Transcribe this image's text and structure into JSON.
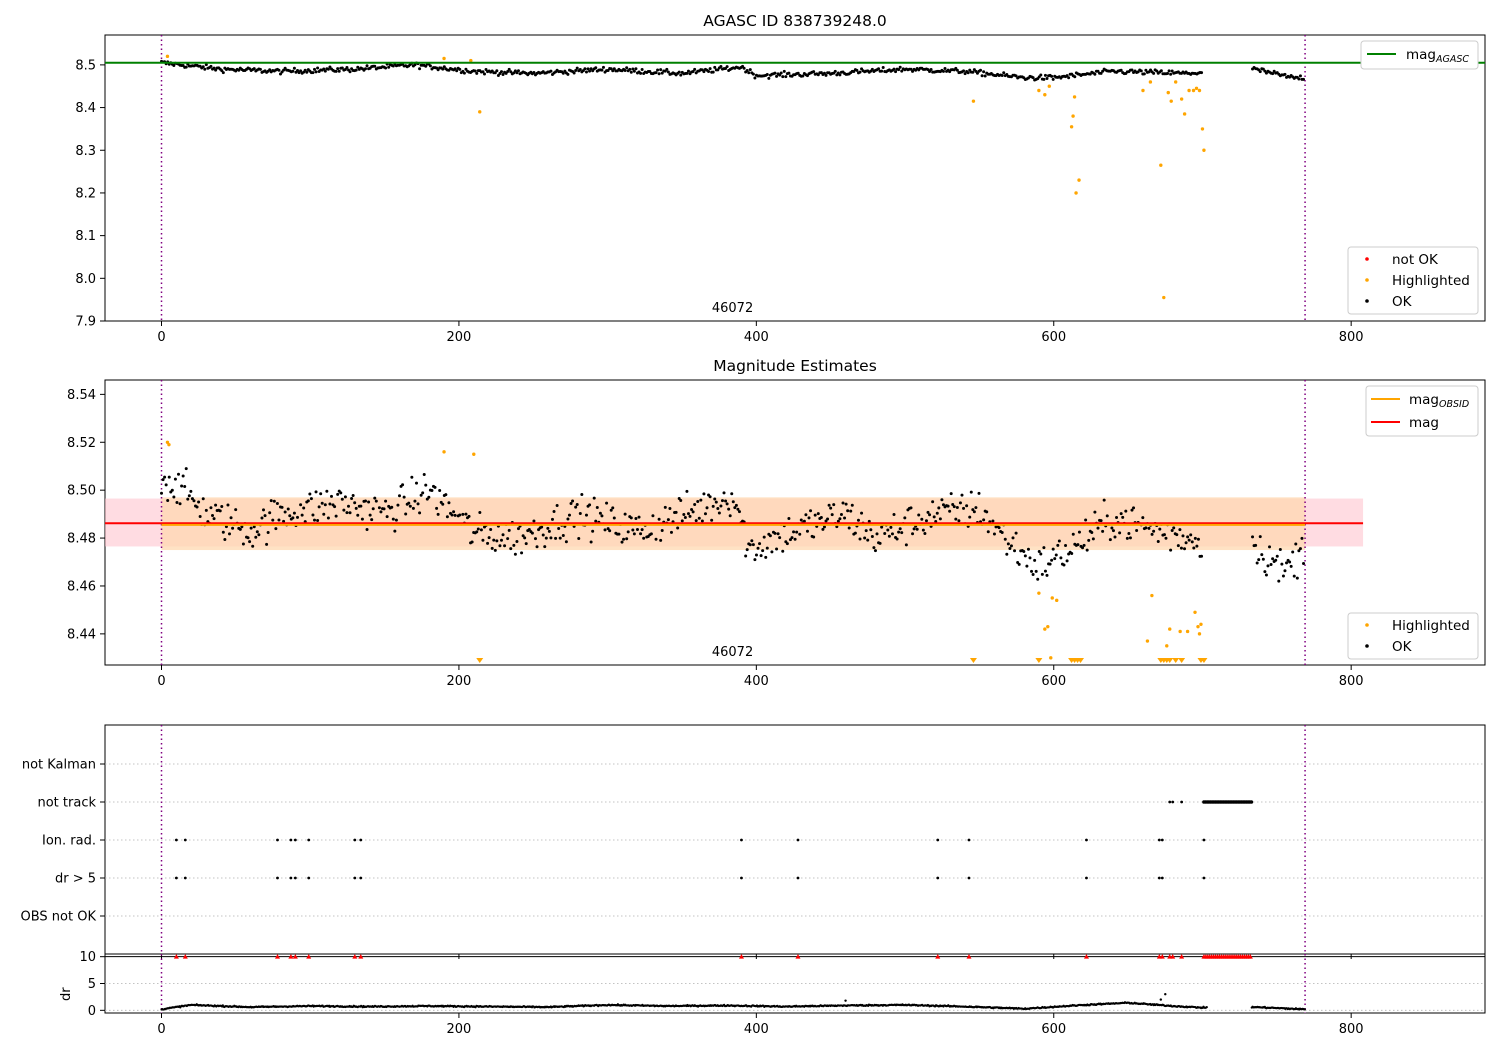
{
  "chart_data": [
    {
      "type": "scatter",
      "title": "AGASC ID 838739248.0",
      "xlabel": "",
      "ylabel": "",
      "xlim": [
        -38,
        890
      ],
      "ylim": [
        7.9,
        8.57
      ],
      "xticks": [
        0,
        200,
        400,
        600,
        800
      ],
      "yticks": [
        7.9,
        8.0,
        8.1,
        8.2,
        8.3,
        8.4,
        8.5
      ],
      "ytick_labels": [
        "7.9",
        "8.0",
        "8.1",
        "8.2",
        "8.3",
        "8.4",
        "8.5"
      ],
      "obsid_boundaries": [
        0,
        769
      ],
      "obsid_label": {
        "text": "46072",
        "x": 384
      },
      "mag_agasc": 8.505,
      "legend_lines": [
        {
          "label": "mag",
          "sub": "AGASC",
          "color": "#008000"
        }
      ],
      "legend_markers": [
        {
          "label": "not OK",
          "color": "#ff0000"
        },
        {
          "label": "Highlighted",
          "color": "#ffa500"
        },
        {
          "label": "OK",
          "color": "#000000"
        }
      ],
      "series": [
        {
          "name": "OK",
          "color": "#000000",
          "base_segments": [
            [
              0,
              8.505
            ],
            [
              40,
              8.49
            ],
            [
              80,
              8.485
            ],
            [
              130,
              8.49
            ],
            [
              170,
              8.5
            ],
            [
              210,
              8.485
            ],
            [
              250,
              8.48
            ],
            [
              300,
              8.49
            ],
            [
              350,
              8.48
            ],
            [
              390,
              8.495
            ],
            [
              400,
              8.475
            ],
            [
              450,
              8.48
            ],
            [
              500,
              8.49
            ],
            [
              540,
              8.485
            ],
            [
              580,
              8.47
            ],
            [
              600,
              8.47
            ],
            [
              640,
              8.485
            ],
            [
              690,
              8.48
            ],
            [
              735,
              8.49
            ],
            [
              760,
              8.47
            ]
          ],
          "gap": [
            700,
            733
          ],
          "count": 740
        },
        {
          "name": "Highlighted",
          "color": "#ffa500",
          "points": [
            [
              4,
              8.52
            ],
            [
              190,
              8.515
            ],
            [
              208,
              8.51
            ],
            [
              214,
              8.39
            ],
            [
              546,
              8.415
            ],
            [
              590,
              8.44
            ],
            [
              594,
              8.43
            ],
            [
              597,
              8.45
            ],
            [
              612,
              8.355
            ],
            [
              613,
              8.38
            ],
            [
              614,
              8.425
            ],
            [
              615,
              8.2
            ],
            [
              617,
              8.23
            ],
            [
              660,
              8.44
            ],
            [
              665,
              8.46
            ],
            [
              672,
              8.265
            ],
            [
              674,
              7.955
            ],
            [
              677,
              8.435
            ],
            [
              679,
              8.415
            ],
            [
              682,
              8.46
            ],
            [
              686,
              8.42
            ],
            [
              688,
              8.385
            ],
            [
              691,
              8.44
            ],
            [
              694,
              8.44
            ],
            [
              696,
              8.445
            ],
            [
              698,
              8.44
            ],
            [
              700,
              8.35
            ],
            [
              701,
              8.3
            ]
          ]
        },
        {
          "name": "not OK",
          "color": "#ff0000",
          "points": []
        }
      ]
    },
    {
      "type": "scatter",
      "title": "Magnitude Estimates",
      "xlabel": "",
      "ylabel": "",
      "xlim": [
        -38,
        890
      ],
      "ylim": [
        8.427,
        8.546
      ],
      "xticks": [
        0,
        200,
        400,
        600,
        800
      ],
      "yticks": [
        8.44,
        8.46,
        8.48,
        8.5,
        8.52,
        8.54
      ],
      "ytick_labels": [
        "8.44",
        "8.46",
        "8.48",
        "8.50",
        "8.52",
        "8.54"
      ],
      "obsid_boundaries": [
        0,
        769
      ],
      "obsid_label": {
        "text": "46072",
        "x": 384
      },
      "mag_mean": 8.4862,
      "mag_band": [
        8.4765,
        8.4965
      ],
      "mag_obsid": 8.4855,
      "mag_obsid_band": [
        8.475,
        8.497
      ],
      "legend_lines": [
        {
          "label": "mag",
          "sub": "OBSID",
          "color": "#ffa500"
        },
        {
          "label": "mag",
          "sub": "",
          "color": "#ff0000"
        }
      ],
      "legend_markers": [
        {
          "label": "Highlighted",
          "color": "#ffa500"
        },
        {
          "label": "OK",
          "color": "#000000"
        }
      ],
      "series": [
        {
          "name": "OK",
          "color": "#000000",
          "base_segments": [
            [
              0,
              8.505
            ],
            [
              15,
              8.5
            ],
            [
              30,
              8.49
            ],
            [
              60,
              8.483
            ],
            [
              80,
              8.49
            ],
            [
              120,
              8.495
            ],
            [
              150,
              8.49
            ],
            [
              180,
              8.5
            ],
            [
              210,
              8.482
            ],
            [
              240,
              8.48
            ],
            [
              280,
              8.49
            ],
            [
              320,
              8.483
            ],
            [
              360,
              8.492
            ],
            [
              385,
              8.498
            ],
            [
              395,
              8.475
            ],
            [
              420,
              8.482
            ],
            [
              460,
              8.49
            ],
            [
              480,
              8.48
            ],
            [
              520,
              8.49
            ],
            [
              550,
              8.492
            ],
            [
              570,
              8.478
            ],
            [
              590,
              8.468
            ],
            [
              610,
              8.475
            ],
            [
              640,
              8.488
            ],
            [
              690,
              8.48
            ],
            [
              735,
              8.477
            ],
            [
              755,
              8.466
            ],
            [
              768,
              8.475
            ]
          ],
          "gap": [
            700,
            733
          ],
          "count": 740
        },
        {
          "name": "Highlighted",
          "color": "#ffa500",
          "points": [
            [
              4,
              8.52
            ],
            [
              5,
              8.519
            ],
            [
              190,
              8.516
            ],
            [
              210,
              8.515
            ],
            [
              590,
              8.457
            ],
            [
              594,
              8.442
            ],
            [
              596,
              8.443
            ],
            [
              599,
              8.455
            ],
            [
              602,
              8.454
            ],
            [
              598,
              8.43
            ],
            [
              663,
              8.437
            ],
            [
              666,
              8.456
            ],
            [
              676,
              8.435
            ],
            [
              678,
              8.442
            ],
            [
              685,
              8.441
            ],
            [
              690,
              8.441
            ],
            [
              695,
              8.449
            ],
            [
              697,
              8.443
            ],
            [
              698,
              8.44
            ],
            [
              699,
              8.444
            ]
          ]
        },
        {
          "name": "Highlighted below range",
          "color": "#ffa500",
          "points": [
            [
              214,
              8.427
            ],
            [
              546,
              8.427
            ],
            [
              590,
              8.427
            ],
            [
              612,
              8.427
            ],
            [
              614,
              8.427
            ],
            [
              616,
              8.427
            ],
            [
              618,
              8.427
            ],
            [
              672,
              8.427
            ],
            [
              674,
              8.427
            ],
            [
              676,
              8.427
            ],
            [
              678,
              8.427
            ],
            [
              682,
              8.427
            ],
            [
              686,
              8.427
            ],
            [
              699,
              8.427
            ],
            [
              701,
              8.427
            ]
          ]
        }
      ]
    },
    {
      "type": "scatter",
      "title": "",
      "xlabel": "",
      "ylabel": "",
      "xlim": [
        -38,
        890
      ],
      "xticks": [
        0,
        200,
        400,
        600,
        800
      ],
      "flag_rows": [
        "not Kalman",
        "not track",
        "Ion. rad.",
        "dr > 5",
        "OBS not OK"
      ],
      "obsid_boundaries": [
        0,
        769
      ],
      "flags": {
        "not track": {
          "points": [
            678,
            680,
            686
          ],
          "range": [
            701,
            733
          ]
        },
        "Ion. rad.": {
          "points": [
            10,
            16,
            78,
            87,
            90,
            99,
            130,
            134,
            390,
            428,
            522,
            543,
            622,
            671,
            673,
            701
          ]
        },
        "dr > 5": {
          "points": [
            10,
            16,
            78,
            87,
            90,
            99,
            130,
            134,
            390,
            428,
            522,
            543,
            622,
            671,
            673,
            701
          ]
        }
      }
    },
    {
      "type": "scatter",
      "title": "",
      "xlabel": "",
      "ylabel": "dr",
      "xlim": [
        -38,
        890
      ],
      "ylim": [
        -0.5,
        10.5
      ],
      "xticks": [
        0,
        200,
        400,
        600,
        800
      ],
      "yticks": [
        0,
        5,
        10
      ],
      "ytick_labels": [
        "0",
        "5",
        "10"
      ],
      "obsid_boundaries": [
        0,
        769
      ],
      "dr_capped_x": {
        "points": [
          10,
          16,
          78,
          87,
          90,
          99,
          130,
          134,
          390,
          428,
          522,
          543,
          622,
          671,
          673,
          678,
          680,
          686
        ],
        "range": [
          701,
          733
        ]
      },
      "series": [
        {
          "name": "dr",
          "color": "#000000",
          "base_segments": [
            [
              0,
              0.2
            ],
            [
              20,
              1.0
            ],
            [
              60,
              0.6
            ],
            [
              100,
              0.8
            ],
            [
              140,
              0.7
            ],
            [
              180,
              0.8
            ],
            [
              220,
              0.7
            ],
            [
              260,
              0.6
            ],
            [
              300,
              1.0
            ],
            [
              340,
              0.8
            ],
            [
              380,
              0.9
            ],
            [
              420,
              0.7
            ],
            [
              460,
              0.9
            ],
            [
              500,
              1.0
            ],
            [
              540,
              0.7
            ],
            [
              580,
              0.3
            ],
            [
              620,
              1.0
            ],
            [
              650,
              1.4
            ],
            [
              680,
              0.8
            ],
            [
              700,
              0.5
            ],
            [
              735,
              0.6
            ],
            [
              768,
              0.2
            ]
          ],
          "gap": [
            703,
            733
          ],
          "extra": [
            [
              672,
              2.0
            ],
            [
              675,
              3.0
            ],
            [
              460,
              1.8
            ]
          ]
        }
      ]
    }
  ]
}
